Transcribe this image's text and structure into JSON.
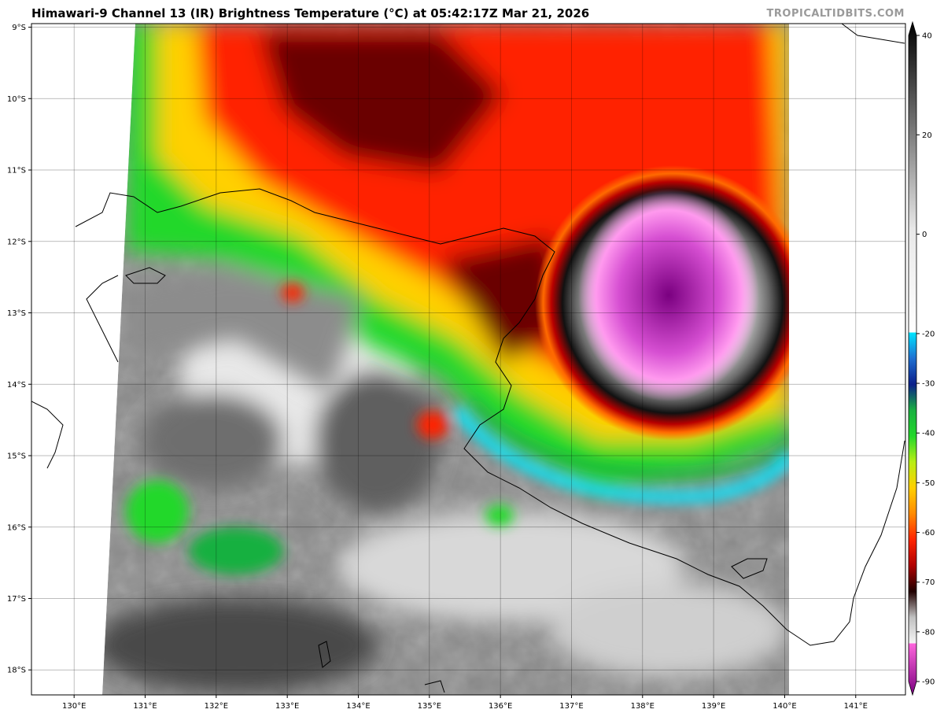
{
  "header": {
    "title": "Himawari-9 Channel 13 (IR) Brightness Temperature (°C) at 05:42:17Z Mar 21, 2026",
    "credit": "TROPICALTIDBITS.COM"
  },
  "map": {
    "lon_labels": [
      "130°E",
      "131°E",
      "132°E",
      "133°E",
      "134°E",
      "135°E",
      "136°E",
      "137°E",
      "138°E",
      "139°E",
      "140°E",
      "141°E"
    ],
    "lat_labels": [
      "9°S",
      "10°S",
      "11°S",
      "12°S",
      "13°S",
      "14°S",
      "15°S",
      "16°S",
      "17°S",
      "18°S"
    ],
    "lon_range": [
      129.4,
      141.7
    ],
    "lat_range": [
      -8.95,
      -18.35
    ]
  },
  "colorbar": {
    "tick_labels": [
      "40",
      "20",
      "0",
      "-20",
      "-30",
      "-40",
      "-50",
      "-60",
      "-70",
      "-80",
      "-90"
    ],
    "range": [
      -90,
      40
    ],
    "stops": [
      {
        "value": 40,
        "color": "#000000"
      },
      {
        "value": 0,
        "color": "#e8e8e8"
      },
      {
        "value": -20,
        "color": "#ffffff"
      },
      {
        "value": -20.01,
        "color": "#00e5ff"
      },
      {
        "value": -25,
        "color": "#1f6fd1"
      },
      {
        "value": -30,
        "color": "#0b1f8a"
      },
      {
        "value": -35,
        "color": "#19b041"
      },
      {
        "value": -40,
        "color": "#22d82a"
      },
      {
        "value": -45,
        "color": "#b8ee15"
      },
      {
        "value": -50,
        "color": "#ffd000"
      },
      {
        "value": -55,
        "color": "#ff8a00"
      },
      {
        "value": -60,
        "color": "#ff2400"
      },
      {
        "value": -65,
        "color": "#b00000"
      },
      {
        "value": -70,
        "color": "#200000"
      },
      {
        "value": -75,
        "color": "#c0c0c0"
      },
      {
        "value": -80,
        "color": "#f4f4f4"
      },
      {
        "value": -80.01,
        "color": "#ff66dd"
      },
      {
        "value": -90,
        "color": "#7a0080"
      }
    ]
  }
}
